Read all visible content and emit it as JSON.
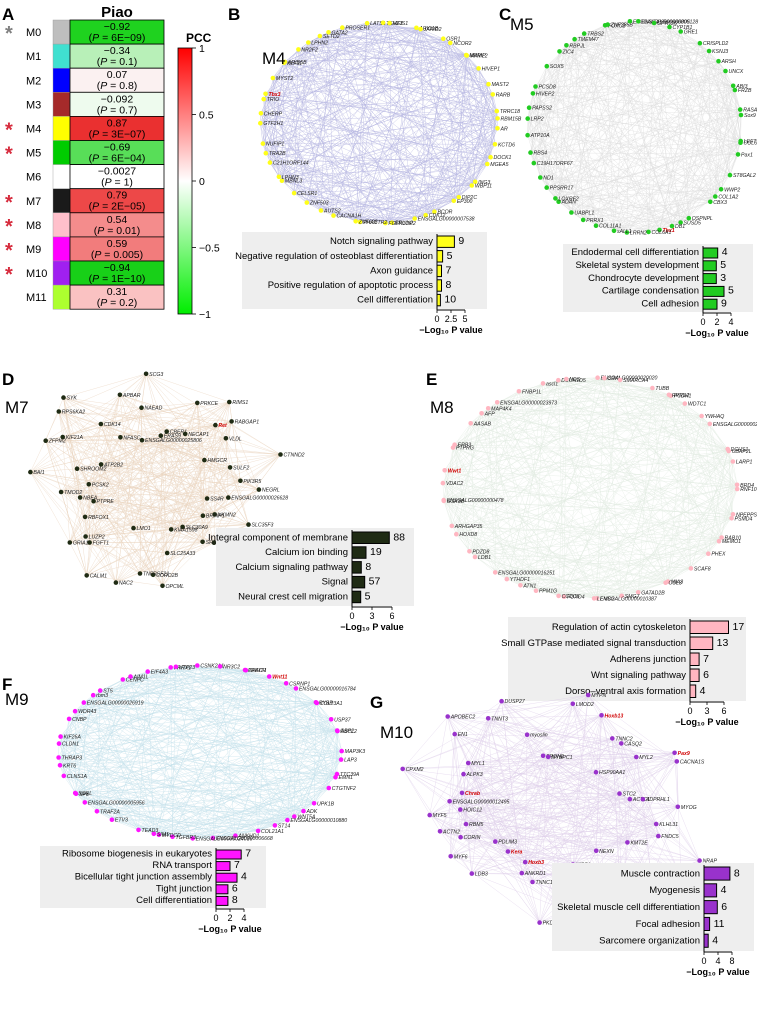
{
  "panelA": {
    "letter": "A",
    "title": "Piao",
    "colorbar": {
      "title": "PCC",
      "ticks": [
        "1",
        "0.5",
        "0",
        "−0.5",
        "−1"
      ]
    },
    "rows": [
      {
        "module": "M0",
        "color": "#bebebe",
        "star": "grey",
        "r": "−0.92",
        "p": "6E−09",
        "fill": "#1fd21f"
      },
      {
        "module": "M1",
        "color": "#40e0d0",
        "star": "",
        "r": "−0.34",
        "p": "0.1",
        "fill": "#b8f0b8"
      },
      {
        "module": "M2",
        "color": "#0000ff",
        "star": "",
        "r": "0.07",
        "p": "0.8",
        "fill": "#fbf1f1"
      },
      {
        "module": "M3",
        "color": "#a52a2a",
        "star": "",
        "r": "−0.092",
        "p": "0.7",
        "fill": "#eefbee"
      },
      {
        "module": "M4",
        "color": "#ffff00",
        "star": "red",
        "r": "0.87",
        "p": "3E−07",
        "fill": "#ea3030"
      },
      {
        "module": "M5",
        "color": "#00cc00",
        "star": "red",
        "r": "−0.69",
        "p": "6E−04",
        "fill": "#58de58"
      },
      {
        "module": "M6",
        "color": "#ffffff",
        "star": "",
        "r": "−0.0027",
        "p": "1",
        "fill": "#ffffff"
      },
      {
        "module": "M7",
        "color": "#1a1a1a",
        "star": "red",
        "r": "0.79",
        "p": "2E−05",
        "fill": "#ed4848"
      },
      {
        "module": "M8",
        "color": "#ffc0cb",
        "star": "red",
        "r": "0.54",
        "p": "0.01",
        "fill": "#f48c8c"
      },
      {
        "module": "M9",
        "color": "#ff00ff",
        "star": "red",
        "r": "0.59",
        "p": "0.005",
        "fill": "#f27c7c"
      },
      {
        "module": "M10",
        "color": "#a020f0",
        "star": "red",
        "r": "−0.94",
        "p": "1E−10",
        "fill": "#18d018"
      },
      {
        "module": "M11",
        "color": "#adff2f",
        "star": "",
        "r": "0.31",
        "p": "0.2",
        "fill": "#fac2c2"
      }
    ]
  },
  "panels": [
    {
      "letter": "B",
      "module": "M4",
      "bar_color": "#ffff1a",
      "net_color": "#aaaadd",
      "genes": [
        "AR",
        "KCTD6",
        "DOCK1",
        "MGEA5",
        "ING3",
        "WBP11",
        "DIP2C",
        "EP300",
        "BCOR",
        "CDK12",
        "ENSGALG00000007538",
        "ERLIN2",
        "FGFR1OP2",
        "PHACTR2",
        "ZNF628",
        "CACNA1H",
        "AUTS2",
        "ZNF503",
        "CELSR1",
        "MBNL3",
        "LPHN3",
        "C21H1ORF144",
        "TRA2B",
        "NUFIP1",
        "GTF2H1",
        "CHERP",
        "TRIO",
        "Tbx3",
        "MYST2",
        "KLF11",
        "ARID5B",
        "NR2F2",
        "LPHN2",
        "SETD2",
        "GATA2",
        "PROSER1",
        "LATS1",
        "TSHZ3",
        "MEIS1",
        "ARID1B",
        "JARID2",
        "OSR1",
        "NCOR2",
        "MAML2",
        "MPRIP",
        "HIVEP1",
        "MAST2",
        "RARB",
        "TRRC18",
        "RBM15B"
      ],
      "accent": [
        "Tbx3"
      ],
      "terms": [
        {
          "label": "Notch signaling pathway",
          "value": 3.1,
          "count": "9"
        },
        {
          "label": "Negative regulation of osteoblast differentiation",
          "value": 1.0,
          "count": "5"
        },
        {
          "label": "Axon guidance",
          "value": 0.8,
          "count": "7"
        },
        {
          "label": "Positive regulation of apoptotic process",
          "value": 0.8,
          "count": "8"
        },
        {
          "label": "Cell differentiation",
          "value": 0.6,
          "count": "10"
        }
      ],
      "axis": {
        "max": 5,
        "ticks": [
          0,
          2.5,
          5
        ],
        "tick_labels": [
          "0",
          "2.5",
          "5"
        ],
        "label": "−Log₁₀ P value"
      }
    },
    {
      "letter": "C",
      "module": "M5",
      "bar_color": "#22cc22",
      "net_color": "#d8d8d8",
      "genes": [
        "LEFTY1",
        "COL6A3",
        "Pax1",
        "ST8GAL2",
        "WWP2",
        "COL1A2",
        "CBX3",
        "OSPNPL",
        "SUSD5",
        "DB1",
        "Tbx1",
        "COL6A1",
        "LRRN2",
        "sALL1",
        "COL11A1",
        "PRRX1",
        "UABPL1",
        "ADAN",
        "LOXRF2",
        "PPSRR17",
        "ND1",
        "C19H17ORF67",
        "RBS4",
        "ATP10A",
        "LRP2",
        "PAPSS2",
        "HIVEP2",
        "PCSD8",
        "SOX5",
        "ZIC4",
        "RBPJL",
        "TMEM47",
        "TRBS2",
        "FOXC2",
        "ZNF385B",
        "ENSGALG00000006805",
        "ENSGALG00000000128",
        "GPR126",
        "CYP1B1",
        "GRE1",
        "CRISPLD2",
        "KSNJ3",
        "ARSH",
        "UNCX",
        "ABI3",
        "FRZB",
        "RASAL1",
        "Sox9"
      ],
      "accent": [
        "Tbx1"
      ],
      "terms": [
        {
          "label": "Endodermal cell differentiation",
          "value": 2.1,
          "count": "4"
        },
        {
          "label": "Skeletal system development",
          "value": 1.9,
          "count": "5"
        },
        {
          "label": "Chondrocyte development",
          "value": 1.9,
          "count": "3"
        },
        {
          "label": "Cartilage condensation",
          "value": 3.0,
          "count": "5"
        },
        {
          "label": "Cell adhesion",
          "value": 2.0,
          "count": "9"
        }
      ],
      "axis": {
        "max": 4,
        "ticks": [
          0,
          2,
          4
        ],
        "tick_labels": [
          "0",
          "2",
          "4"
        ],
        "label": "−Log₁₀ P value"
      }
    },
    {
      "letter": "D",
      "module": "M7",
      "bar_color": "#1f2b14",
      "net_color": "#e6cfb6",
      "genes": [
        "NEGRL",
        "ENSGALG00000026628",
        "SS4R",
        "SLC35F3",
        "NKMN2",
        "BRINP1",
        "AAK1",
        "SH3BP5",
        "SLC30A9",
        "KIAA1598",
        "SLC25A33",
        "OPCML",
        "CORO2B",
        "TNFRSF21",
        "NAC2",
        "LMO1",
        "CALM1",
        "FGFT1",
        "LUZP2",
        "GRIA1",
        "RBFOX1",
        "PTPRE",
        "NBEA",
        "TMOD2",
        "PCSK2",
        "BAI1",
        "SHROOM2",
        "ATP2B2",
        "ZFPM2",
        "KIF21A",
        "RPS6KA2",
        "SYK",
        "CDK14",
        "NFASC",
        "APBAR",
        "ENSGALG00000025806",
        "NAEAD",
        "SCG3",
        "ERAS9",
        "CBER1",
        "PRKCE",
        "NECAP1",
        "RIMS1",
        "Ret",
        "RABGAP1",
        "VLDL",
        "HMGCR",
        "CTNND2",
        "SULF2",
        "PIK3R5"
      ],
      "accent": [
        "Ret"
      ],
      "terms": [
        {
          "label": "Integral component of membrane",
          "value": 5.6,
          "count": "88"
        },
        {
          "label": "Calcium ion binding",
          "value": 2.1,
          "count": "19"
        },
        {
          "label": "Calcium signaling pathway",
          "value": 1.4,
          "count": "8"
        },
        {
          "label": "Signal",
          "value": 1.9,
          "count": "57"
        },
        {
          "label": "Neural crest cell migration",
          "value": 1.3,
          "count": "5"
        }
      ],
      "axis": {
        "max": 6,
        "ticks": [
          0,
          3,
          6
        ],
        "tick_labels": [
          "0",
          "3",
          "6"
        ],
        "label": "−Log₁₀ P value"
      }
    },
    {
      "letter": "E",
      "module": "M8",
      "bar_color": "#ffb6c1",
      "net_color": "#dde8dd",
      "genes": [
        "RNF10",
        "NPEPPS",
        "PSMD4",
        "RAB10",
        "MEMO1",
        "PHEX",
        "SCAF8",
        "MIA3",
        "CUL3",
        "GATAD2B",
        "SMG7",
        "ENSGALG00000010387",
        "LEMD2",
        "FOXO4",
        "CCDC6",
        "PPM1G",
        "ATN1",
        "YTHDF1",
        "ENSGALG00000016251",
        "LDB1",
        "PDZD8",
        "HOXD8",
        "ARHGAP35",
        "ENSGALG00000000478",
        "GSK3B",
        "VDAC2",
        "Wwt1",
        "PTPRG",
        "ERB3",
        "AASAB",
        "AFP",
        "MAP4K4",
        "ENSGALG00000023973",
        "FNBP1L",
        "ascl1",
        "DCUN1D5",
        "NDS",
        "ENSGALG00000020020",
        "CRKL",
        "SMARCA4",
        "TUBB",
        "PCDH1",
        "RPRD2",
        "WDTC1",
        "YWHAQ",
        "ENSGALG00000027308",
        "DCHS1",
        "UBAP2L",
        "LARP1",
        "BRD4"
      ],
      "accent": [
        "Wwt1"
      ],
      "terms": [
        {
          "label": "Regulation of actin cytoskeleton",
          "value": 6.8,
          "count": "17"
        },
        {
          "label": "Small GTPase mediated signal transduction",
          "value": 4.0,
          "count": "13"
        },
        {
          "label": "Adherens junction",
          "value": 1.6,
          "count": "7"
        },
        {
          "label": "Wnt signaling pathway",
          "value": 1.6,
          "count": "6"
        },
        {
          "label": "Dorso–ventral axis formation",
          "value": 1.0,
          "count": "4"
        }
      ],
      "axis": {
        "max": 6,
        "ticks": [
          0,
          3,
          6
        ],
        "tick_labels": [
          "0",
          "3",
          "6"
        ],
        "label": "−Log₁₀ P value"
      }
    },
    {
      "letter": "F",
      "module": "M9",
      "bar_color": "#ff14ff",
      "net_color": "#bcdde8",
      "genes": [
        "LAP3",
        "TTC39A",
        "EMN1",
        "CTGTNF2",
        "UPK1B",
        "ADK",
        "WNT5A",
        "ENSGALG00000010880",
        "ST14",
        "COL21A1",
        "ANKHD1",
        "ENSGALG00000006668",
        "ENSGALG00000024039",
        "TGFBR3",
        "MYDCD",
        "SIM1",
        "TEAD3",
        "ETV3",
        "TRAF2A",
        "ENSGALG00000005956",
        "SP3",
        "SGEL",
        "CLNS1A",
        "KRT6",
        "THRAP3",
        "CLDN1",
        "KIF26A",
        "CNBP",
        "WDR43",
        "ENSGALG00000026919",
        "rbm3",
        "ST5",
        "CENPC",
        "AIM1L",
        "EIF4A3",
        "PRRX1",
        "UTP23",
        "CSNK2A1",
        "NR3C2",
        "SHMT1",
        "PRKCH",
        "Wnt11",
        "CSRNP1",
        "ENSGALG00000016784",
        "RYBP",
        "COL23A1",
        "USP37",
        "ASCL2",
        "GBP2",
        "MAP3K3"
      ],
      "accent": [
        "Wnt11"
      ],
      "terms": [
        {
          "label": "Ribosome biogenesis in eukaryotes",
          "value": 3.6,
          "count": "7"
        },
        {
          "label": "RNA transport",
          "value": 2.0,
          "count": "7"
        },
        {
          "label": "Bicellular tight junction assembly",
          "value": 3.0,
          "count": "4"
        },
        {
          "label": "Tight junction",
          "value": 1.7,
          "count": "6"
        },
        {
          "label": "Cell differentiation",
          "value": 1.7,
          "count": "8"
        }
      ],
      "axis": {
        "max": 4,
        "ticks": [
          0,
          2,
          4
        ],
        "tick_labels": [
          "0",
          "2",
          "4"
        ],
        "label": "−Log₁₀ P value"
      }
    },
    {
      "letter": "G",
      "module": "M10",
      "bar_color": "#9932cc",
      "net_color": "#dac8e6",
      "genes": [
        "MYOG",
        "KLHL31",
        "FNDC5",
        "NRAP",
        "KMT2E",
        "MYOD1",
        "MYOZ2",
        "NEXN",
        "SH3BGR",
        "TPPP",
        "XIRP1",
        "LMOD3",
        "PKD2L2",
        "TNNC1",
        "ANKRD1",
        "Hoxb3",
        "Kera",
        "LDB3",
        "PDLIM3",
        "MYF6",
        "CORIN",
        "ACTN2",
        "RBM5",
        "MYF5",
        "HOIC12",
        "ENSGALG00000012495",
        "Chrab",
        "CPXM2",
        "ALPK3",
        "MYL1",
        "EN1",
        "APOBEC2",
        "TNNT3",
        "DUSP27",
        "myoslin",
        "SPON2",
        "MYBPC1",
        "LMOD2",
        "MYPN",
        "Hoxb13",
        "TNNC2",
        "CASQ2",
        "HSP90AA1",
        "MYL2",
        "Pax9",
        "CACNA1S",
        "STC2",
        "ACTC1",
        "ADPRHL1"
      ],
      "accent": [
        "Hoxb3",
        "Kera",
        "Chrab",
        "Hoxb13",
        "Pax9"
      ],
      "terms": [
        {
          "label": "Muscle contraction",
          "value": 7.4,
          "count": "8"
        },
        {
          "label": "Myogenesis",
          "value": 3.6,
          "count": "4"
        },
        {
          "label": "Skeletal muscle cell differentiation",
          "value": 3.8,
          "count": "6"
        },
        {
          "label": "Focal adhesion",
          "value": 1.6,
          "count": "11"
        },
        {
          "label": "Sarcomere organization",
          "value": 1.2,
          "count": "4"
        }
      ],
      "axis": {
        "max": 8,
        "ticks": [
          0,
          4,
          8
        ],
        "tick_labels": [
          "0",
          "4",
          "8"
        ],
        "label": "−Log₁₀ P value"
      }
    }
  ]
}
